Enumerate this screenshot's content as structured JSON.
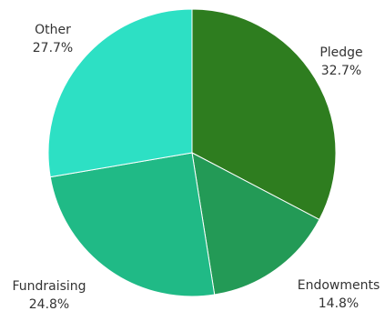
{
  "chart_data": {
    "type": "pie",
    "slices": [
      {
        "label": "Pledge",
        "value": 32.7,
        "value_label": "32.7%",
        "color": "#2e7d1f"
      },
      {
        "label": "Endowments",
        "value": 14.8,
        "value_label": "14.8%",
        "color": "#239a56"
      },
      {
        "label": "Fundraising",
        "value": 24.8,
        "value_label": "24.8%",
        "color": "#20ba86"
      },
      {
        "label": "Other",
        "value": 27.7,
        "value_label": "27.7%",
        "color": "#2de0c4"
      }
    ],
    "start_angle": "12 o'clock",
    "direction": "clockwise",
    "legend": "none"
  }
}
